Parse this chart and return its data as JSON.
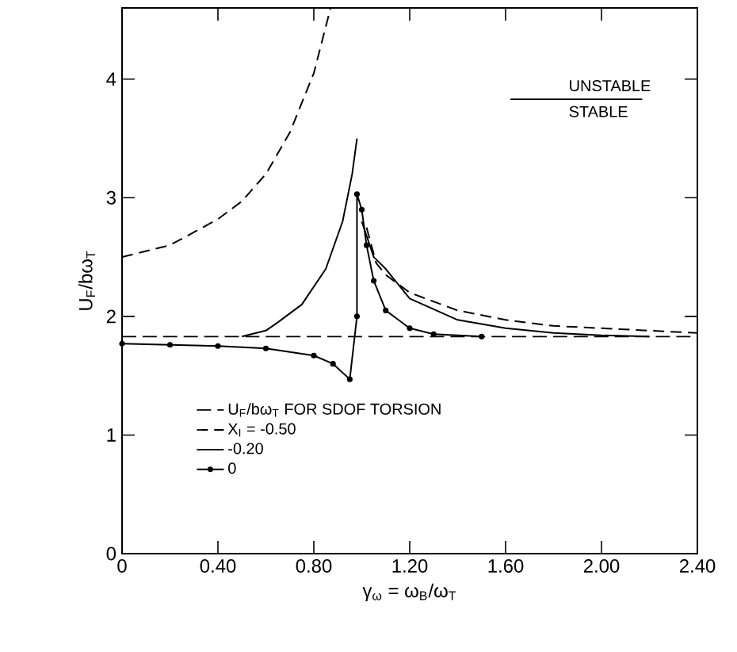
{
  "chart_data": {
    "type": "line",
    "xlabel": "γ$_{ω}$ = ω$_{B}$/ω$_{T}$",
    "ylabel": "U$_{F}$/bω$_{T}$",
    "xlim": [
      0,
      2.4
    ],
    "ylim": [
      0,
      4.6
    ],
    "xticks": [
      0,
      {
        "value": 0.4,
        "label": "0.40"
      },
      {
        "value": 0.8,
        "label": "0.80"
      },
      {
        "value": 1.2,
        "label": "1.20"
      },
      {
        "value": 1.6,
        "label": "1.60"
      },
      {
        "value": 2.0,
        "label": "2.00"
      },
      {
        "value": 2.4,
        "label": "2.40"
      }
    ],
    "yticks": [
      0,
      1,
      2,
      3,
      4
    ],
    "ref_lines": [
      {
        "axis": "y",
        "value": 1.83,
        "label": "U$_{F}$/bω$_{T}$ FOR SDOF TORSION",
        "line_style": "dashed"
      }
    ],
    "series": [
      {
        "name": "X$_{I}$ = -0.50",
        "color": "#000000",
        "line_style": "dashed",
        "marker": "none",
        "x": [
          0,
          0.2,
          0.4,
          0.5,
          0.6,
          0.7,
          0.8,
          0.87,
          0.95,
          1.02,
          1.06,
          1.1,
          1.2,
          1.4,
          1.6,
          1.8,
          2.0,
          2.2,
          2.4
        ],
        "values": [
          2.5,
          2.6,
          2.82,
          2.97,
          3.2,
          3.55,
          4.05,
          4.6,
          null,
          2.75,
          2.45,
          2.35,
          2.2,
          2.05,
          1.97,
          1.92,
          1.9,
          1.88,
          1.86
        ]
      },
      {
        "name": "-0.20",
        "color": "#000000",
        "line_style": "solid",
        "marker": "none",
        "x": [
          0.5,
          0.6,
          0.65,
          0.75,
          0.85,
          0.92,
          0.96,
          0.98,
          0.99,
          1.0,
          1.05,
          1.1,
          1.2,
          1.4,
          1.6,
          1.8,
          2.0,
          2.2
        ],
        "values": [
          1.83,
          1.88,
          1.95,
          2.1,
          2.4,
          2.8,
          3.2,
          3.5,
          null,
          2.8,
          2.5,
          2.4,
          2.15,
          1.97,
          1.9,
          1.86,
          1.84,
          1.83
        ]
      },
      {
        "name": "0",
        "color": "#000000",
        "line_style": "solid",
        "marker": "circle",
        "x": [
          0,
          0.2,
          0.4,
          0.6,
          0.8,
          0.88,
          0.95,
          0.98,
          0.98,
          1.0,
          1.02,
          1.05,
          1.1,
          1.2,
          1.3,
          1.5
        ],
        "values": [
          1.77,
          1.76,
          1.75,
          1.73,
          1.67,
          1.6,
          1.47,
          2.0,
          3.03,
          2.9,
          2.6,
          2.3,
          2.05,
          1.9,
          1.85,
          1.83
        ]
      }
    ],
    "legend": "bottom",
    "annotations": [
      "UNSTABLE",
      "STABLE"
    ]
  }
}
